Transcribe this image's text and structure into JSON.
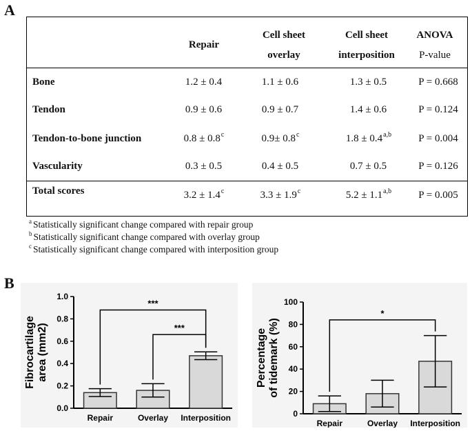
{
  "panel_a": {
    "letter": "A"
  },
  "panel_b": {
    "letter": "B"
  },
  "table": {
    "headers": {
      "repair": [
        "Repair"
      ],
      "overlay": [
        "Cell sheet",
        "overlay"
      ],
      "interposition": [
        "Cell sheet",
        "interposition"
      ],
      "anova": [
        "ANOVA",
        "P-value"
      ]
    },
    "rows": [
      {
        "label": "Bone",
        "repair": "1.2 ± 0.4",
        "repair_sup": "",
        "overlay": "1.1 ± 0.6",
        "overlay_sup": "",
        "interposition": "1.3 ± 0.5",
        "interposition_sup": "",
        "p": "P = 0.668"
      },
      {
        "label": "Tendon",
        "repair": "0.9 ± 0.6",
        "repair_sup": "",
        "overlay": "0.9 ± 0.7",
        "overlay_sup": "",
        "interposition": "1.4 ± 0.6",
        "interposition_sup": "",
        "p": "P = 0.124"
      },
      {
        "label": "Tendon-to-bone junction",
        "repair": "0.8 ± 0.8",
        "repair_sup": "c",
        "overlay": "0.9± 0.8",
        "overlay_sup": "c",
        "interposition": "1.8 ± 0.4",
        "interposition_sup": "a,b",
        "p": "P = 0.004"
      },
      {
        "label": "Vascularity",
        "repair": "0.3 ± 0.5",
        "repair_sup": "",
        "overlay": "0.4 ± 0.5",
        "overlay_sup": "",
        "interposition": "0.7 ± 0.5",
        "interposition_sup": "",
        "p": "P = 0.126"
      }
    ],
    "total": {
      "label": "Total scores",
      "repair": "3.2 ± 1.4",
      "repair_sup": "c",
      "overlay": "3.3 ± 1.9",
      "overlay_sup": "c",
      "interposition": "5.2 ± 1.1",
      "interposition_sup": "a,b",
      "p": "P = 0.005"
    }
  },
  "footnotes": [
    {
      "mark": "a",
      "text": "Statistically significant change compared with repair group"
    },
    {
      "mark": "b",
      "text": "Statistically significant change compared with overlay group"
    },
    {
      "mark": "c",
      "text": "Statistically significant change compared with interposition group"
    }
  ],
  "chart_data": [
    {
      "type": "bar",
      "categories": [
        "Repair",
        "Overlay",
        "Interposition"
      ],
      "values": [
        0.14,
        0.16,
        0.47
      ],
      "errors": [
        0.035,
        0.06,
        0.035
      ],
      "ylabel_lines": [
        "Fibrocartilage",
        "area (mm2)"
      ],
      "ylim": [
        0,
        1.0
      ],
      "yticks": [
        "0.0",
        "0.2",
        "0.4",
        "0.6",
        "0.8",
        "1.0"
      ],
      "ytick_values": [
        0,
        0.2,
        0.4,
        0.6,
        0.8,
        1.0
      ],
      "significance": [
        {
          "from": 0,
          "to": 2,
          "label": "***",
          "level": 0.88
        },
        {
          "from": 1,
          "to": 2,
          "label": "***",
          "level": 0.66
        }
      ],
      "bar_color": "#d9d9d9",
      "background": "#f4f4f4"
    },
    {
      "type": "bar",
      "categories": [
        "Repair",
        "Overlay",
        "Interposition"
      ],
      "values": [
        9,
        18,
        47
      ],
      "errors": [
        7,
        12,
        23
      ],
      "ylabel_lines": [
        "Percentage",
        "of tidemark (%)"
      ],
      "ylim": [
        0,
        100
      ],
      "yticks": [
        "0",
        "20",
        "40",
        "60",
        "80",
        "100"
      ],
      "ytick_values": [
        0,
        20,
        40,
        60,
        80,
        100
      ],
      "significance": [
        {
          "from": 0,
          "to": 2,
          "label": "*",
          "level": 84
        }
      ],
      "bar_color": "#d9d9d9",
      "background": "#f4f4f4"
    }
  ]
}
